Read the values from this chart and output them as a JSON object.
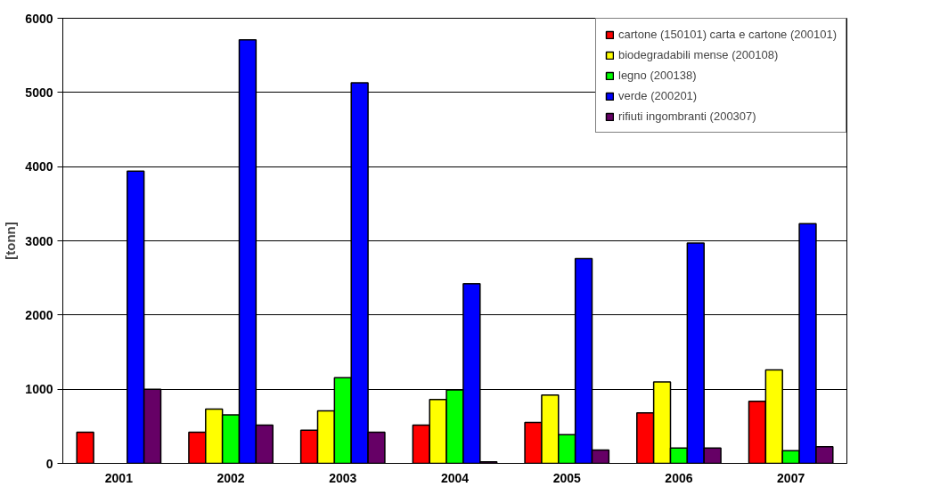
{
  "chart_data": {
    "type": "bar",
    "ylabel": "[tonn]",
    "categories": [
      "2001",
      "2002",
      "2003",
      "2004",
      "2005",
      "2006",
      "2007"
    ],
    "series": [
      {
        "name": "cartone (150101) carta e cartone (200101)",
        "color": "#ff0000",
        "values": [
          420,
          420,
          448,
          517,
          552,
          681,
          836
        ]
      },
      {
        "name": "biodegradabili mense (200108)",
        "color": "#ffff00",
        "values": [
          null,
          733,
          707,
          862,
          922,
          1099,
          1259
        ]
      },
      {
        "name": "legno (200138)",
        "color": "#00ff00",
        "values": [
          null,
          655,
          1155,
          991,
          388,
          207,
          172
        ]
      },
      {
        "name": "verde (200201)",
        "color": "#0000ff",
        "values": [
          3940,
          5710,
          5130,
          2420,
          2760,
          2970,
          3230
        ]
      },
      {
        "name": "rifiuti ingombranti (200307)",
        "color": "#660066",
        "values": [
          1000,
          517,
          420,
          20,
          181,
          207,
          224
        ]
      }
    ],
    "ylim": [
      0,
      6000
    ],
    "yticks": [
      0,
      1000,
      2000,
      3000,
      4000,
      5000,
      6000
    ],
    "grid": "y",
    "legend": "top right"
  }
}
